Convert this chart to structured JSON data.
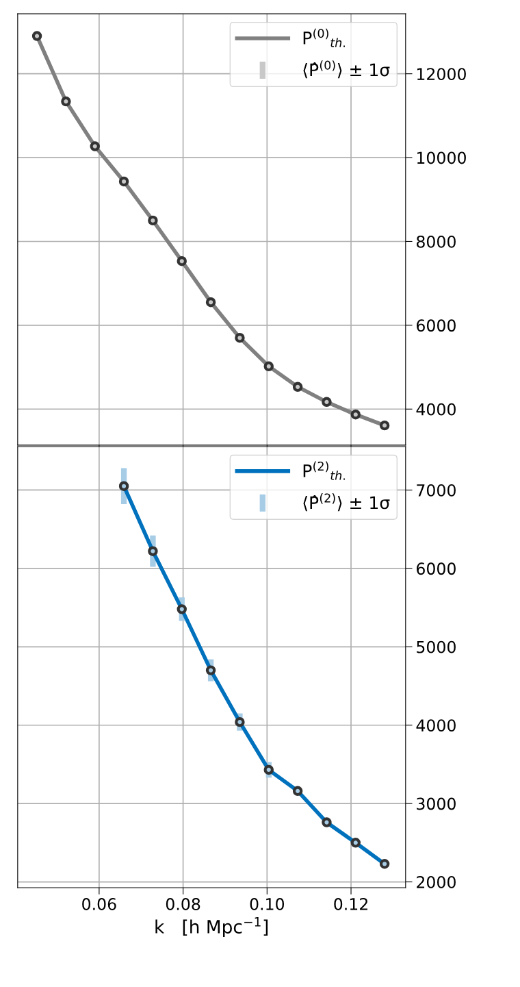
{
  "chart_data": [
    {
      "type": "line",
      "xlim": [
        0.0406,
        0.133
      ],
      "ylim": [
        3140,
        13430
      ],
      "xticks": [
        0.06,
        0.08,
        0.1,
        0.12
      ],
      "yticks": [
        4000,
        6000,
        8000,
        10000,
        12000
      ],
      "tick_labels": "y",
      "grid": true,
      "legend": "top right",
      "series": [
        {
          "name": "P$^{(0)}$$_{th.}$",
          "color": "#808080",
          "x": [
            0.0452,
            0.0521,
            0.059,
            0.0659,
            0.0728,
            0.0797,
            0.0866,
            0.0935,
            0.1004,
            0.1073,
            0.1142,
            0.1211,
            0.128
          ],
          "values": [
            12900,
            11340,
            10270,
            9430,
            8500,
            7530,
            6550,
            5700,
            5020,
            4530,
            4170,
            3870,
            3610
          ]
        },
        {
          "name": "⟨P̂$^{(0)}$⟩ ± 1σ",
          "type": "scatter",
          "color": "#c8c8c8",
          "marker": "circle",
          "x": [
            0.0452,
            0.0521,
            0.059,
            0.0659,
            0.0728,
            0.0797,
            0.0866,
            0.0935,
            0.1004,
            0.1073,
            0.1142,
            0.1211,
            0.128
          ],
          "values": [
            12900,
            11340,
            10270,
            9430,
            8500,
            7530,
            6550,
            5700,
            5020,
            4530,
            4170,
            3870,
            3610
          ],
          "errors": [
            null,
            null,
            null,
            null,
            null,
            null,
            null,
            null,
            null,
            null,
            null,
            null,
            null
          ]
        }
      ]
    },
    {
      "type": "line",
      "xlim": [
        0.0406,
        0.133
      ],
      "ylim": [
        1926,
        7554
      ],
      "xticks": [
        {
          "value": 0.06,
          "label": "0.06"
        },
        {
          "value": 0.08,
          "label": "0.08"
        },
        {
          "value": 0.1,
          "label": "0.10"
        },
        {
          "value": 0.12,
          "label": "0.12"
        }
      ],
      "yticks": [
        2000,
        3000,
        4000,
        5000,
        6000,
        7000
      ],
      "xlabel": "k   [h Mpc$^{−1}$]",
      "grid": true,
      "legend": "top right",
      "series": [
        {
          "name": "P$^{(2)}$$_{th.}$",
          "color": "#0072bd",
          "x": [
            0.0659,
            0.0728,
            0.0797,
            0.0866,
            0.0935,
            0.1004,
            0.1073,
            0.1142,
            0.1211,
            0.128
          ],
          "values": [
            7050,
            6220,
            5480,
            4700,
            4040,
            3430,
            3160,
            2760,
            2500,
            2230
          ]
        },
        {
          "name": "⟨P̂$^{(2)}$⟩ ± 1σ",
          "type": "scatter",
          "color": "#a6cce6",
          "marker": "circle",
          "x": [
            0.0659,
            0.0728,
            0.0797,
            0.0866,
            0.0935,
            0.1004,
            0.1073,
            0.1142,
            0.1211,
            0.128
          ],
          "values": [
            7050,
            6220,
            5480,
            4700,
            4040,
            3430,
            3160,
            2760,
            2500,
            2230
          ],
          "errors": [
            230,
            200,
            150,
            140,
            110,
            100,
            null,
            null,
            null,
            null
          ]
        }
      ]
    }
  ]
}
